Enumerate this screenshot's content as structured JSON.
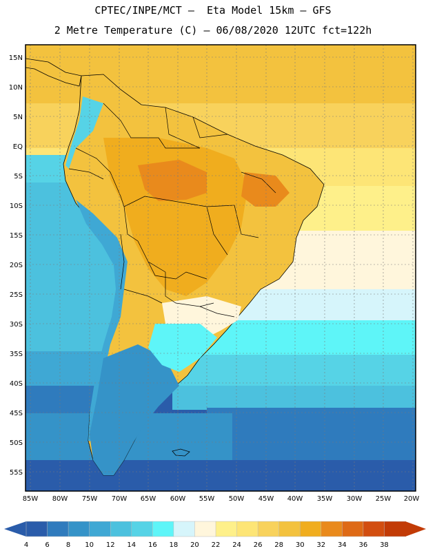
{
  "title": {
    "line1": "CPTEC/INPE/MCT –  Eta Model 15km – GFS",
    "line2": "2 Metre Temperature (C) – 06/08/2020 12UTC fct=122h"
  },
  "axes": {
    "lat_labels": [
      "15N",
      "10N",
      "5N",
      "EQ",
      "5S",
      "10S",
      "15S",
      "20S",
      "25S",
      "30S",
      "35S",
      "40S",
      "45S",
      "50S",
      "55S"
    ],
    "lon_labels": [
      "85W",
      "80W",
      "75W",
      "70W",
      "65W",
      "60W",
      "55W",
      "50W",
      "45W",
      "40W",
      "35W",
      "30W",
      "25W",
      "20W"
    ]
  },
  "colorbar": {
    "ticks": [
      "4",
      "6",
      "8",
      "10",
      "12",
      "14",
      "16",
      "18",
      "20",
      "22",
      "24",
      "26",
      "28",
      "30",
      "32",
      "34",
      "36",
      "38"
    ],
    "colors": [
      "#2a5caa",
      "#2f7bbd",
      "#3593c8",
      "#3fa8d4",
      "#4cc1de",
      "#56d3e6",
      "#5ef5f8",
      "#d6f5fb",
      "#fff6dc",
      "#fef08a",
      "#fde576",
      "#f8d25c",
      "#f3c23e",
      "#f0ad1e",
      "#e98a1c",
      "#de6a16",
      "#d24e10",
      "#c23b06"
    ]
  }
}
